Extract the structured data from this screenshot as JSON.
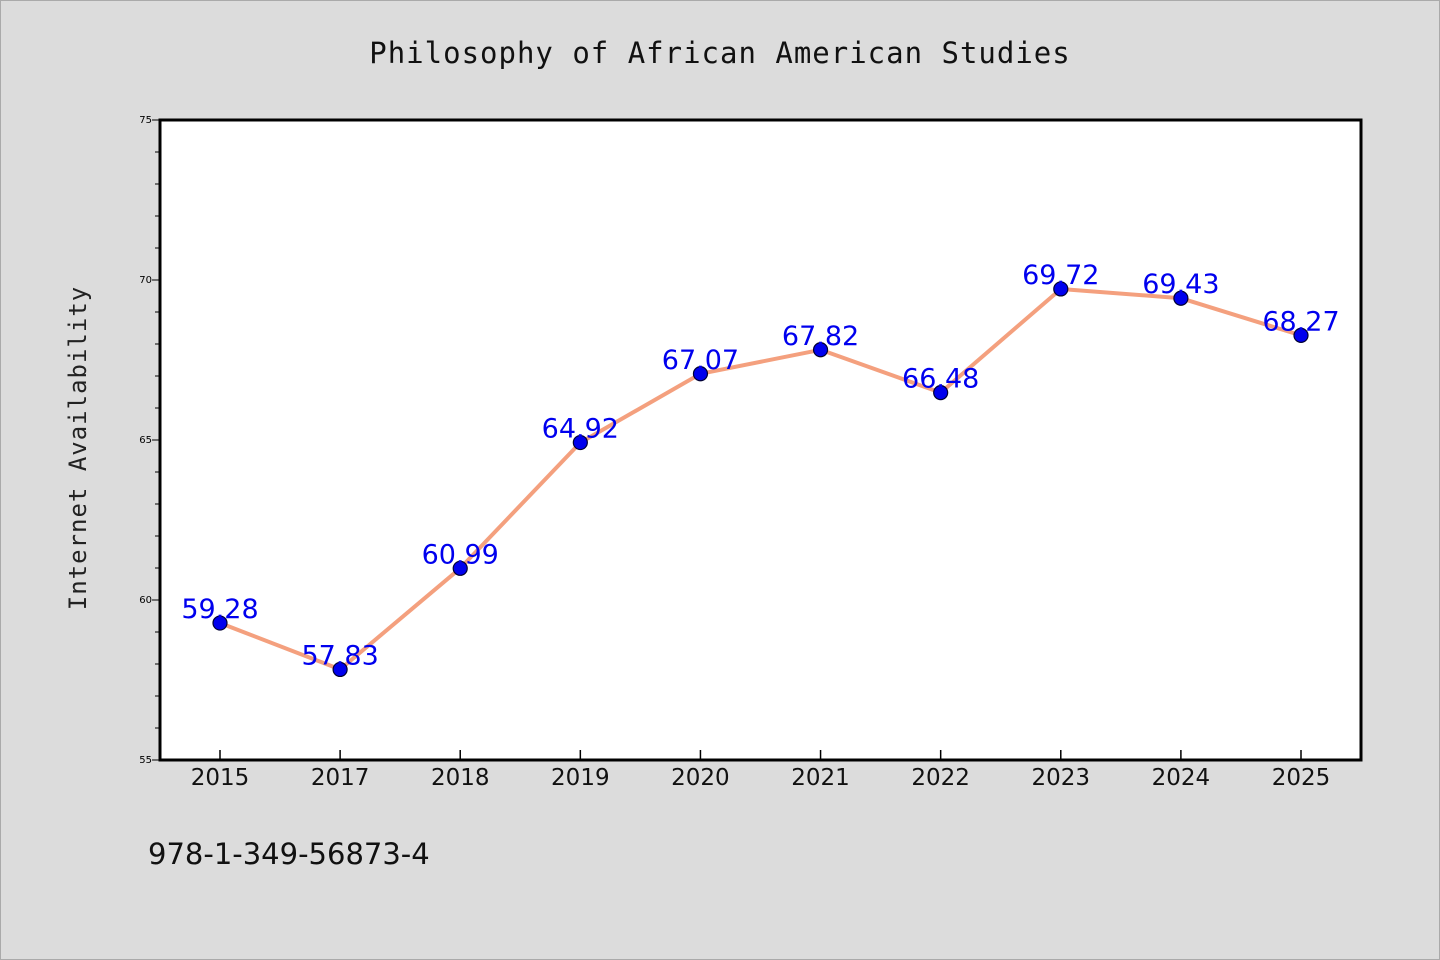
{
  "chart_data": {
    "type": "line",
    "title": "Philosophy of African American Studies",
    "xlabel": "",
    "ylabel": "Internet Availability",
    "categories": [
      "2015",
      "2017",
      "2018",
      "2019",
      "2020",
      "2021",
      "2022",
      "2023",
      "2024",
      "2025"
    ],
    "series": [
      {
        "values": [
          59.28,
          57.83,
          60.99,
          64.92,
          67.07,
          67.82,
          66.48,
          69.72,
          69.43,
          68.27
        ]
      }
    ],
    "ylim": [
      55,
      75
    ],
    "yticks": [
      "55",
      "60",
      "65",
      "70",
      "75"
    ],
    "data_labels": [
      "59.28",
      "57.83",
      "60.99",
      "64.92",
      "67.07",
      "67.82",
      "66.48",
      "69.72",
      "69.43",
      "68.27"
    ],
    "grid": false,
    "legend": "none",
    "colors": {
      "line": "#f4a07e",
      "marker": "#0000ee",
      "marker_edge": "#000033",
      "label": "#0000ee",
      "background": "#dcdcdc",
      "plot_background": "#ffffff"
    }
  },
  "footer": {
    "isbn": "978-1-349-56873-4"
  }
}
